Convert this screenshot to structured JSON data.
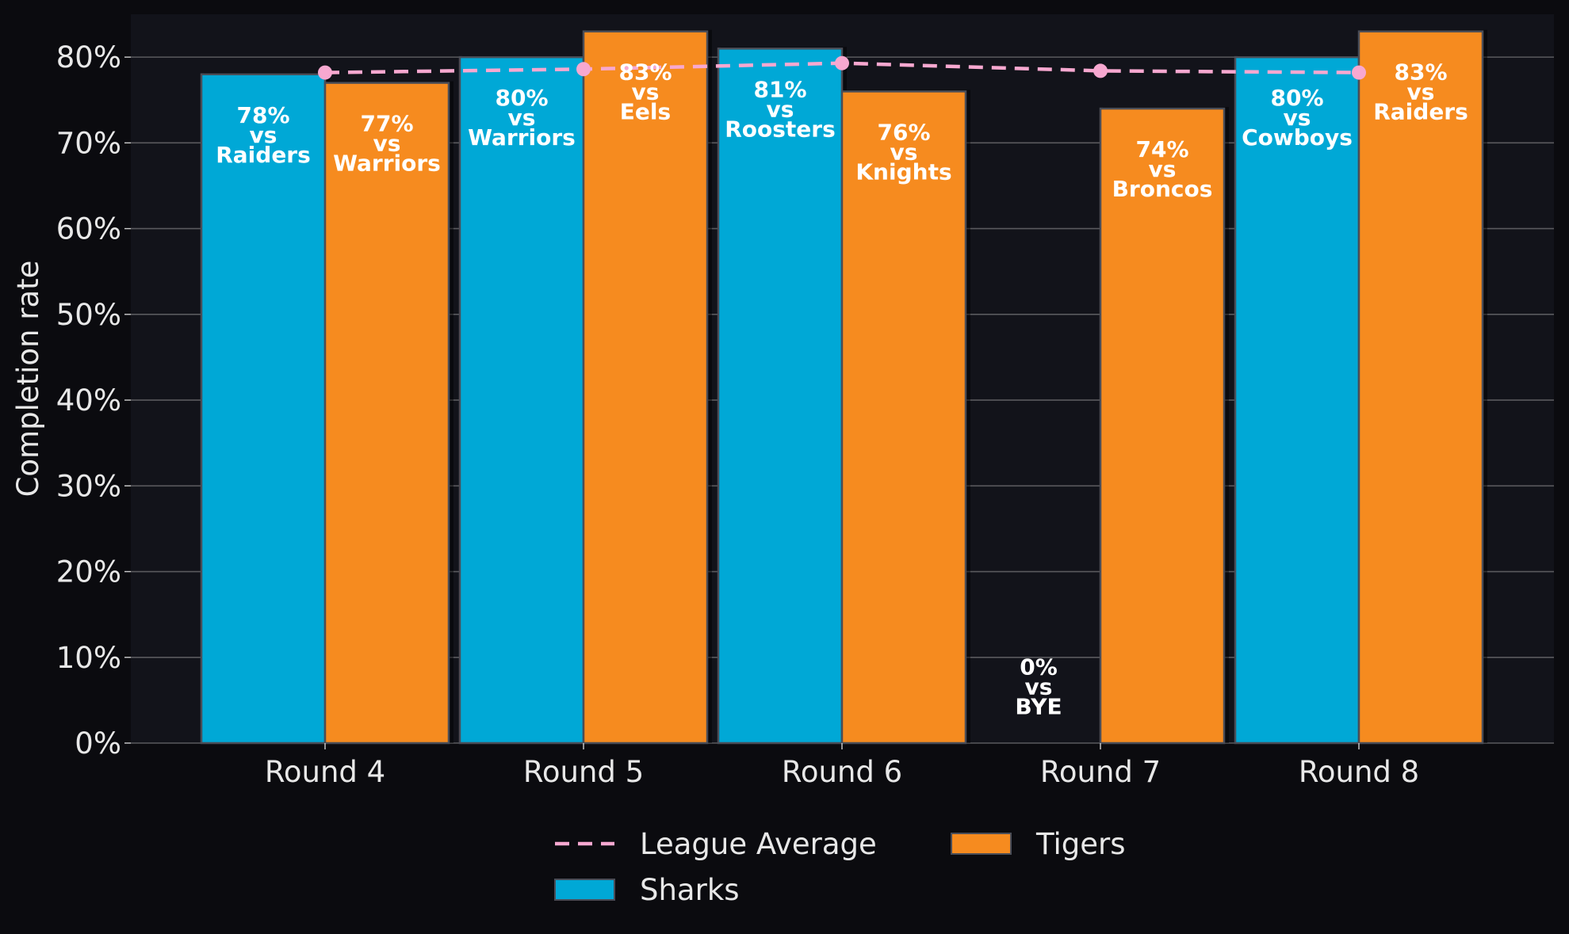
{
  "chart_data": {
    "type": "bar",
    "title": "",
    "xlabel": "",
    "ylabel": "Completion rate",
    "ylim": [
      0,
      0.85
    ],
    "yticks": [
      "0%",
      "10%",
      "20%",
      "30%",
      "40%",
      "50%",
      "60%",
      "70%",
      "80%"
    ],
    "grid": "horizontal",
    "legend_position": "bottom-center",
    "categories": [
      "Round 4",
      "Round 5",
      "Round 6",
      "Round 7",
      "Round 8"
    ],
    "series": [
      {
        "name": "Sharks",
        "type": "bar",
        "color": "#00a8d6",
        "values": [
          0.78,
          0.8,
          0.81,
          0.0,
          0.8
        ],
        "labels": [
          [
            "78%",
            "vs",
            "Raiders"
          ],
          [
            "80%",
            "vs",
            "Warriors"
          ],
          [
            "81%",
            "vs",
            "Roosters"
          ],
          [
            "0%",
            "vs",
            "BYE"
          ],
          [
            "80%",
            "vs",
            "Cowboys"
          ]
        ]
      },
      {
        "name": "Tigers",
        "type": "bar",
        "color": "#f68b1f",
        "values": [
          0.77,
          0.83,
          0.76,
          0.74,
          0.83
        ],
        "labels": [
          [
            "77%",
            "vs",
            "Warriors"
          ],
          [
            "83%",
            "vs",
            "Eels"
          ],
          [
            "76%",
            "vs",
            "Knights"
          ],
          [
            "74%",
            "vs",
            "Broncos"
          ],
          [
            "83%",
            "vs",
            "Raiders"
          ]
        ]
      },
      {
        "name": "League Average",
        "type": "line",
        "style": "dashed",
        "color": "#f7a8d0",
        "values": [
          0.782,
          0.786,
          0.793,
          0.784,
          0.782
        ]
      }
    ],
    "colors": {
      "background": "#0b0b0f",
      "plot_background": "#12131a",
      "grid": "#5a5a5e",
      "text": "#e8e8e8"
    }
  }
}
